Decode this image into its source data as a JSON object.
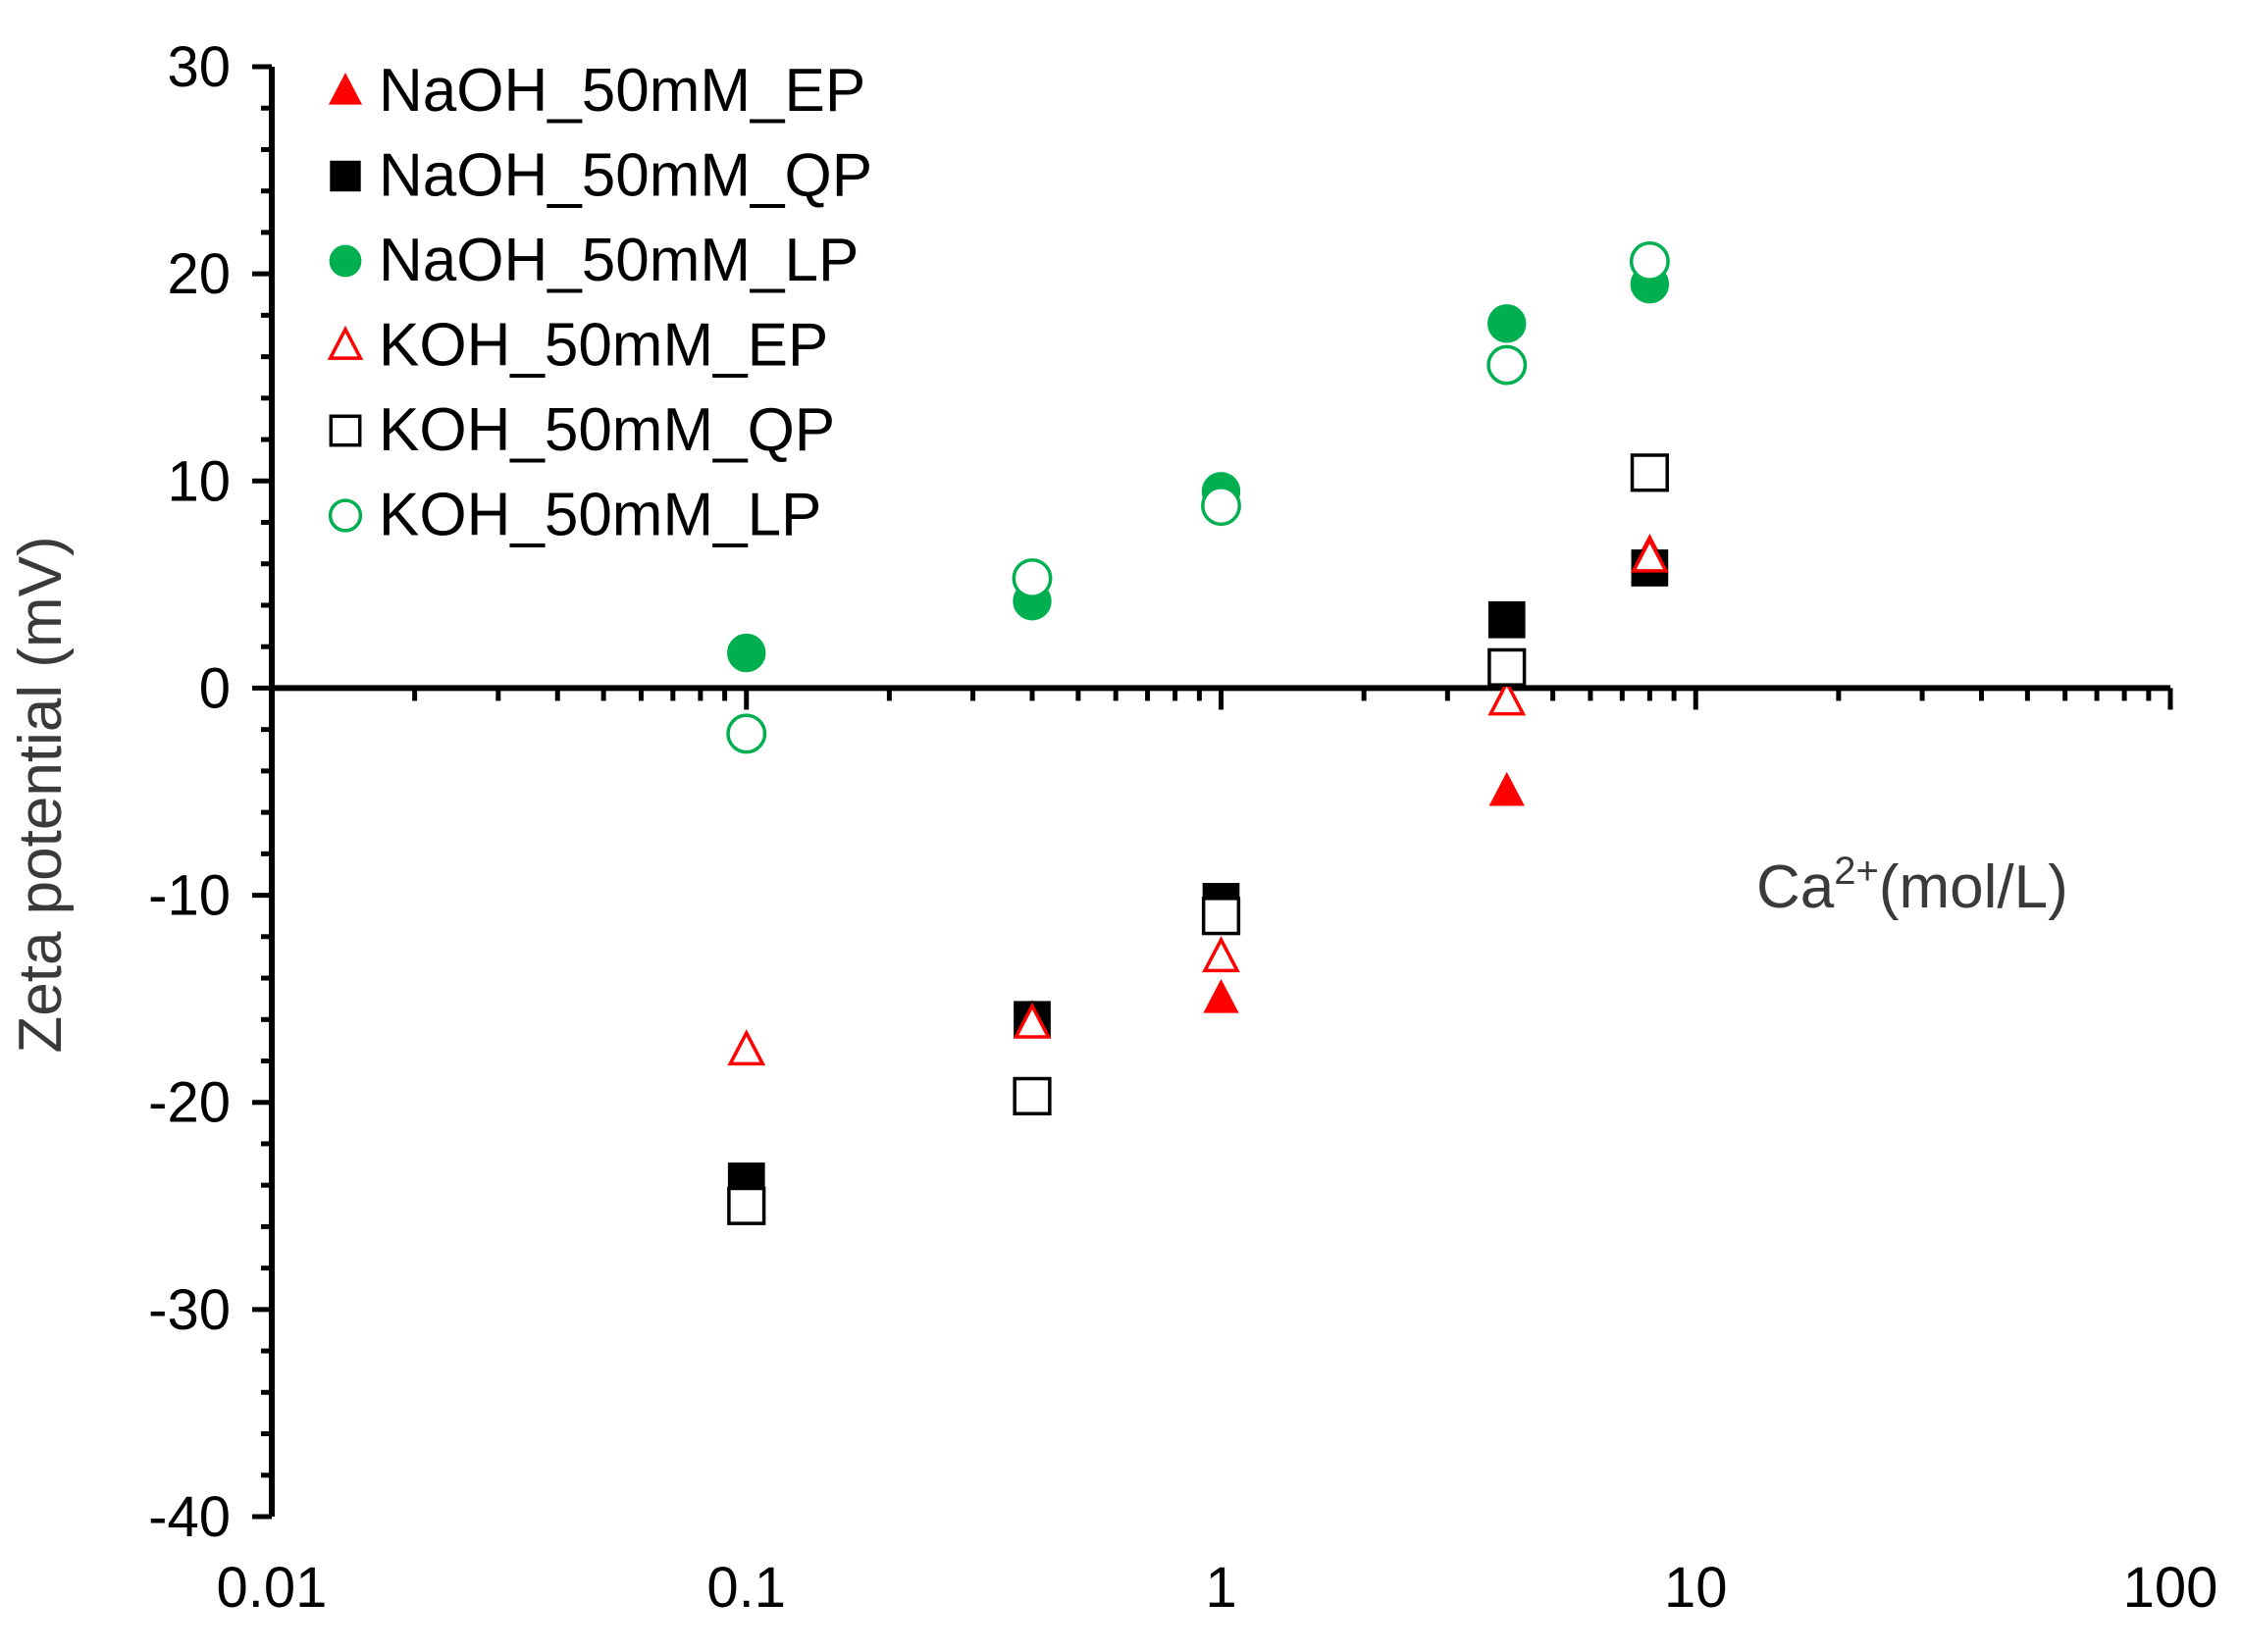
{
  "chart_data": {
    "type": "scatter",
    "title": "",
    "xlabel": "Ca",
    "xlabel_sup": "2+",
    "xlabel_unit": "(mol/L)",
    "ylabel": "Zeta potential (mV)",
    "xscale": "log",
    "xlim": [
      0.01,
      100
    ],
    "ylim": [
      -40,
      30
    ],
    "x_ticks": [
      0.01,
      0.1,
      1,
      10,
      100
    ],
    "x_tick_labels": [
      "0.01",
      "0.1",
      "1",
      "10",
      "100"
    ],
    "y_ticks": [
      30,
      20,
      10,
      0,
      -10,
      -20,
      -30,
      -40
    ],
    "y_tick_labels": [
      "30",
      "20",
      "10",
      "0",
      "-10",
      "-20",
      "-30",
      "-40"
    ],
    "legend_position": "top-left",
    "series": [
      {
        "name": "NaOH_50mM_EP",
        "marker": "triangle",
        "filled": true,
        "color": "#ff0000",
        "x": [
          0.1,
          0.4,
          1,
          4,
          8
        ],
        "y": [
          -17.5,
          -16,
          -15,
          -5,
          6.5
        ]
      },
      {
        "name": "NaOH_50mM_QP",
        "marker": "square",
        "filled": true,
        "color": "#000000",
        "x": [
          0.1,
          0.4,
          1,
          4,
          8
        ],
        "y": [
          -23.8,
          -16,
          -10.3,
          3.3,
          5.8
        ]
      },
      {
        "name": "NaOH_50mM_LP",
        "marker": "circle",
        "filled": true,
        "color": "#00b050",
        "x": [
          0.1,
          0.4,
          1,
          4,
          8
        ],
        "y": [
          1.7,
          4.2,
          9.5,
          17.6,
          19.5
        ]
      },
      {
        "name": "KOH_50mM_EP",
        "marker": "triangle",
        "filled": false,
        "color": "#ff0000",
        "x": [
          0.1,
          0.4,
          1,
          4,
          8
        ],
        "y": [
          -17.5,
          -16.2,
          -13,
          -0.6,
          6.3
        ]
      },
      {
        "name": "KOH_50mM_QP",
        "marker": "square",
        "filled": false,
        "color": "#000000",
        "x": [
          0.1,
          0.4,
          1,
          4,
          8
        ],
        "y": [
          -25,
          -19.7,
          -11,
          1,
          10.4
        ]
      },
      {
        "name": "KOH_50mM_LP",
        "marker": "circle",
        "filled": false,
        "color": "#00b050",
        "x": [
          0.1,
          0.4,
          1,
          4,
          8
        ],
        "y": [
          -2.2,
          5.3,
          8.8,
          15.6,
          20.6
        ]
      }
    ]
  }
}
